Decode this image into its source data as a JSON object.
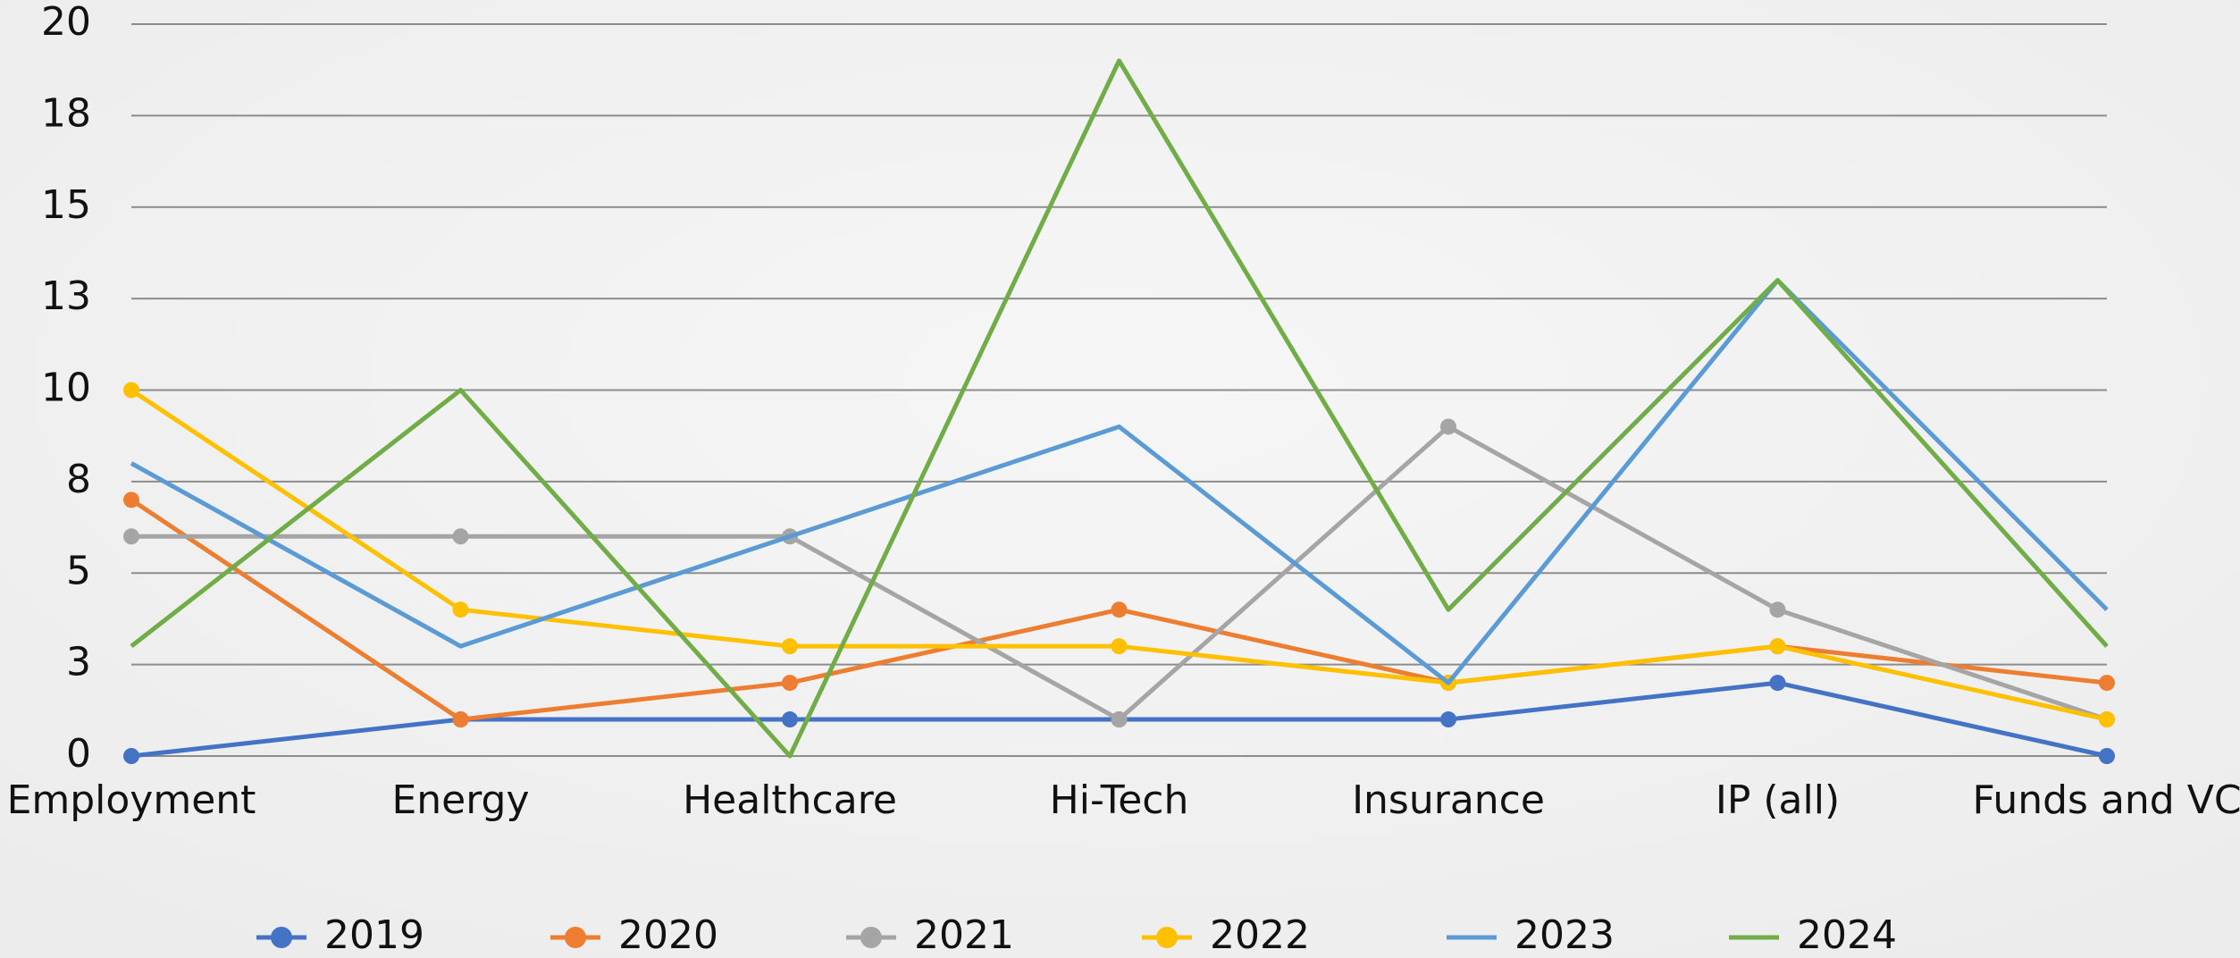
{
  "chart_data": {
    "type": "line",
    "categories": [
      "Employment",
      "Energy",
      "Healthcare",
      "Hi-Tech",
      "Insurance",
      "IP (all)",
      "Funds and VC"
    ],
    "series": [
      {
        "name": "2019",
        "color": "#4472c4",
        "markers": true,
        "values": [
          0,
          1,
          1,
          1,
          1,
          2,
          0
        ]
      },
      {
        "name": "2020",
        "color": "#ed7d31",
        "markers": true,
        "values": [
          7,
          1,
          2,
          4,
          2,
          3,
          2
        ]
      },
      {
        "name": "2021",
        "color": "#a5a5a5",
        "markers": true,
        "values": [
          6,
          6,
          6,
          1,
          9,
          4,
          1
        ]
      },
      {
        "name": "2022",
        "color": "#ffc000",
        "markers": true,
        "values": [
          10,
          4,
          3,
          3,
          2,
          3,
          1
        ]
      },
      {
        "name": "2023",
        "color": "#5b9bd5",
        "markers": false,
        "values": [
          8,
          3,
          6,
          9,
          2,
          13,
          4
        ]
      },
      {
        "name": "2024",
        "color": "#70ad47",
        "markers": false,
        "values": [
          3,
          10,
          0,
          19,
          4,
          13,
          3
        ]
      }
    ],
    "ylim": [
      0,
      20
    ],
    "yticks": [
      0,
      {
        "value": 2.5,
        "label": "3"
      },
      5,
      {
        "value": 7.5,
        "label": "8"
      },
      10,
      {
        "value": 12.5,
        "label": "13"
      },
      15,
      {
        "value": 17.5,
        "label": "18"
      },
      20
    ],
    "grid": true,
    "legend": "bottom"
  }
}
